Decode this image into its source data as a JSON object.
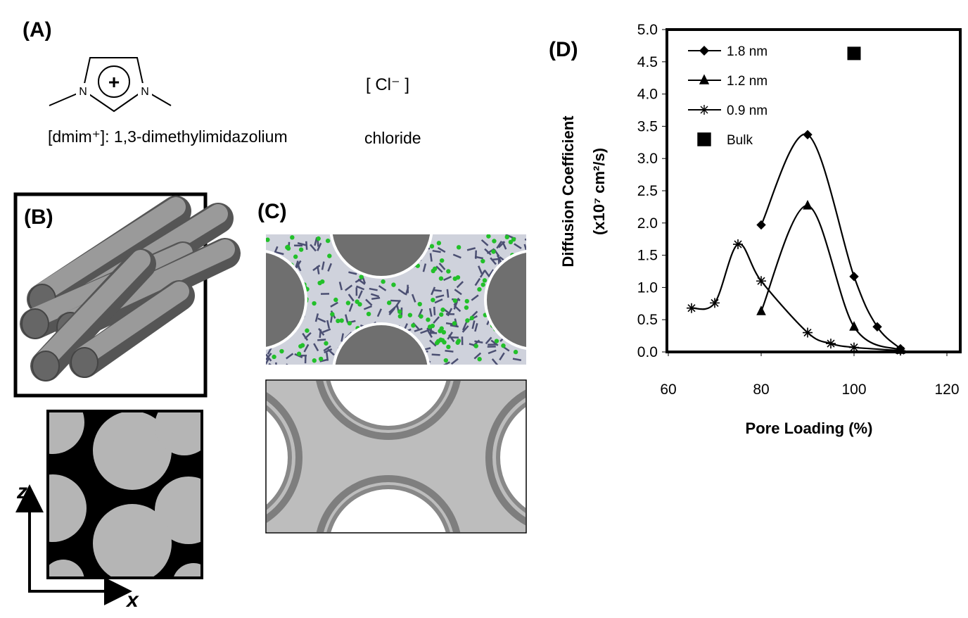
{
  "panels": {
    "A": {
      "label": "(A)",
      "charge": "+",
      "atoms": [
        "N",
        "N"
      ],
      "anion": "[ Cl⁻ ]",
      "cation_name": "[dmim⁺]: 1,3-dimethylimidazolium",
      "anion_name": "chloride"
    },
    "B": {
      "label": "(B)",
      "axes": [
        "z",
        "x"
      ]
    },
    "C": {
      "label": "(C)"
    },
    "D": {
      "label": "(D)"
    }
  },
  "chart_data": {
    "type": "line",
    "xlabel": "Pore Loading (%)",
    "ylabel": [
      "Diffusion Coefficient",
      "(x10⁷ cm²/s)"
    ],
    "xlim": [
      60,
      120
    ],
    "xticks": [
      60,
      80,
      100,
      120
    ],
    "ylim": [
      0,
      5
    ],
    "yticks": [
      {
        "value": 0,
        "label": "0.0"
      },
      0.5,
      {
        "value": 1,
        "label": "1.0"
      },
      1.5,
      {
        "value": 2,
        "label": "2.0"
      },
      2.5,
      {
        "value": 3,
        "label": "3.0"
      },
      3.5,
      {
        "value": 4,
        "label": "4.0"
      },
      4.5,
      {
        "value": 5,
        "label": "5.0"
      }
    ],
    "grid": false,
    "legend": "top-left",
    "series": [
      {
        "name": "1.8 nm",
        "color": "#000000",
        "marker": "diamond",
        "line": true,
        "x": [
          80,
          90,
          100,
          105,
          110
        ],
        "values": [
          1.97,
          3.37,
          1.17,
          0.39,
          0.05
        ]
      },
      {
        "name": "1.2 nm",
        "color": "#000000",
        "marker": "triangle",
        "line": true,
        "x": [
          80,
          90,
          100,
          110
        ],
        "values": [
          0.63,
          2.27,
          0.39,
          0.03
        ]
      },
      {
        "name": "0.9 nm",
        "color": "#000000",
        "marker": "asterisk",
        "line": true,
        "x": [
          65,
          70,
          75,
          80,
          90,
          95,
          100,
          110
        ],
        "values": [
          0.68,
          0.76,
          1.67,
          1.1,
          0.3,
          0.13,
          0.07,
          0.02
        ]
      },
      {
        "name": "Bulk",
        "color": "#000000",
        "marker": "square",
        "line": false,
        "x": [
          100
        ],
        "values": [
          4.63
        ]
      }
    ]
  }
}
